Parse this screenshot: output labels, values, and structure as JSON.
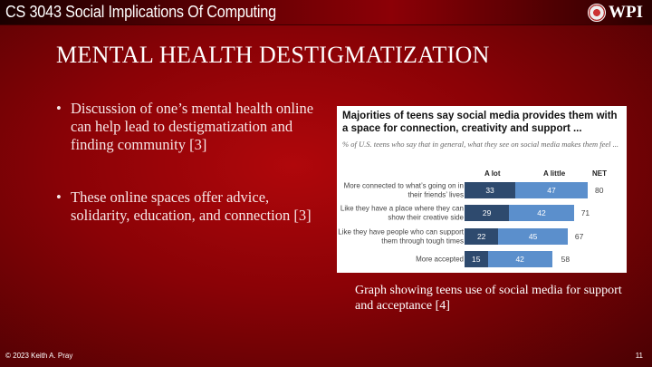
{
  "header": {
    "course": "CS 3043 Social Implications Of Computing",
    "logo_text": "WPI"
  },
  "slide": {
    "title": "MENTAL HEALTH DESTIGMATIZATION",
    "bullets": [
      "Discussion of one’s mental health online can help lead to destigmatization and finding community [3]",
      "These online spaces offer advice, solidarity, education, and connection [3]"
    ],
    "caption": "Graph showing teens use of social media for support and acceptance [4]"
  },
  "chart_data": {
    "type": "bar",
    "stacked": true,
    "orientation": "horizontal",
    "title": "Majorities of teens say social media provides them with a space for connection, creativity and support ...",
    "subtitle": "% of U.S. teens who say that in general, what they see on social media makes them feel ...",
    "categories": [
      "More connected to what’s going on in their friends’ lives",
      "Like they have a place where they can show their creative side",
      "Like they have people who can support them through tough times",
      "More accepted"
    ],
    "series": [
      {
        "name": "A lot",
        "values": [
          33,
          29,
          22,
          15
        ],
        "color": "#2e4a6e"
      },
      {
        "name": "A little",
        "values": [
          47,
          42,
          45,
          42
        ],
        "color": "#5b8fcc"
      }
    ],
    "net_label": "NET",
    "net": [
      80,
      71,
      67,
      58
    ]
  },
  "footer": {
    "copyright": "© 2023 Keith A. Pray",
    "page": "11"
  }
}
